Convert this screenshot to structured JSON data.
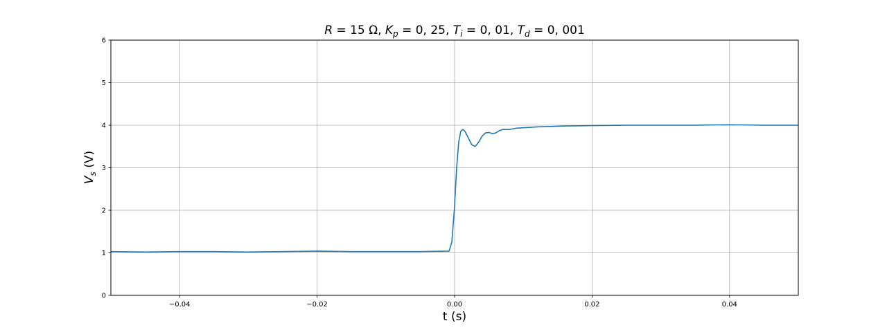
{
  "chart_data": {
    "type": "line",
    "title": {
      "r_sym": "R",
      "r_val": " = 15 Ω,  ",
      "kp_sym": "K",
      "kp_sub": "p",
      "kp_val": " = 0, 25,  ",
      "ti_sym": "T",
      "ti_sub": "i",
      "ti_val": " = 0, 01,  ",
      "td_sym": "T",
      "td_sub": "d",
      "td_val": " = 0, 001"
    },
    "xlabel": "t (s)",
    "ylabel": {
      "sym": "V",
      "sub": "s",
      "unit": " (V)"
    },
    "xlim": [
      -0.05,
      0.05
    ],
    "ylim": [
      0,
      6
    ],
    "xticks": [
      {
        "value": -0.04,
        "label": "−0.04"
      },
      {
        "value": -0.02,
        "label": "−0.02"
      },
      {
        "value": 0.0,
        "label": "0.00"
      },
      {
        "value": 0.02,
        "label": "0.02"
      },
      {
        "value": 0.04,
        "label": "0.04"
      }
    ],
    "yticks": [
      {
        "value": 0,
        "label": "0"
      },
      {
        "value": 1,
        "label": "1"
      },
      {
        "value": 2,
        "label": "2"
      },
      {
        "value": 3,
        "label": "3"
      },
      {
        "value": 4,
        "label": "4"
      },
      {
        "value": 5,
        "label": "5"
      },
      {
        "value": 6,
        "label": "6"
      }
    ],
    "grid": true,
    "series": [
      {
        "color": "#1f77b4",
        "x": [
          -0.05,
          -0.045,
          -0.04,
          -0.035,
          -0.03,
          -0.025,
          -0.02,
          -0.015,
          -0.01,
          -0.005,
          -0.0008,
          -0.0004,
          0.0,
          0.0003,
          0.0006,
          0.0009,
          0.0012,
          0.0015,
          0.002,
          0.0025,
          0.003,
          0.0035,
          0.004,
          0.0045,
          0.005,
          0.0055,
          0.006,
          0.0065,
          0.007,
          0.008,
          0.009,
          0.01,
          0.012,
          0.014,
          0.016,
          0.02,
          0.025,
          0.03,
          0.035,
          0.04,
          0.045,
          0.05
        ],
        "y": [
          1.03,
          1.02,
          1.03,
          1.03,
          1.02,
          1.03,
          1.04,
          1.03,
          1.03,
          1.03,
          1.04,
          1.25,
          2.1,
          3.0,
          3.6,
          3.86,
          3.9,
          3.86,
          3.7,
          3.54,
          3.5,
          3.6,
          3.74,
          3.82,
          3.83,
          3.8,
          3.82,
          3.87,
          3.9,
          3.9,
          3.93,
          3.94,
          3.96,
          3.97,
          3.98,
          3.99,
          4.0,
          4.0,
          4.0,
          4.01,
          4.0,
          4.0
        ]
      }
    ]
  }
}
